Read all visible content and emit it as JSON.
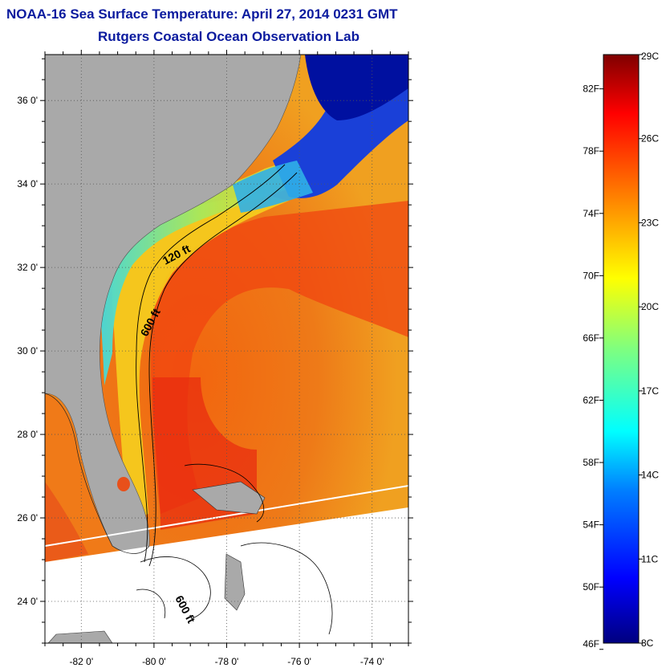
{
  "title": "NOAA-16 Sea Surface Temperature:  April 27, 2014 0231 GMT",
  "subtitle": "Rutgers Coastal Ocean Observation Lab",
  "map": {
    "lat_ticks": [
      "24 0'",
      "26 0'",
      "28 0'",
      "30 0'",
      "32 0'",
      "34 0'",
      "36 0'"
    ],
    "lat_values": [
      24,
      26,
      28,
      30,
      32,
      34,
      36
    ],
    "lon_ticks": [
      "-82 0'",
      "-80 0'",
      "-78 0'",
      "-76 0'",
      "-74 0'"
    ],
    "lon_values": [
      -82,
      -80,
      -78,
      -76,
      -74
    ],
    "lat_range": [
      23,
      37.1
    ],
    "lon_range": [
      -83,
      -73
    ],
    "contour_labels": [
      "120 ft",
      "600 ft",
      "600 ft"
    ],
    "colors": {
      "land": "#a9a9a9",
      "frame": "#000000"
    }
  },
  "colorbar": {
    "fahrenheit_labels": [
      "82F",
      "78F",
      "74F",
      "70F",
      "66F",
      "62F",
      "58F",
      "54F",
      "50F",
      "46F"
    ],
    "fahrenheit_values": [
      82,
      78,
      74,
      70,
      66,
      62,
      58,
      54,
      50,
      46
    ],
    "celsius_labels": [
      "29C",
      "26C",
      "23C",
      "20C",
      "17C",
      "14C",
      "11C",
      "8C"
    ],
    "celsius_values": [
      29,
      26,
      23,
      20,
      17,
      14,
      11,
      8
    ],
    "range_c": [
      8,
      29
    ],
    "stops": [
      "#00007f",
      "#0000ff",
      "#007fff",
      "#00ffff",
      "#7fff7f",
      "#ffff00",
      "#ff7f00",
      "#ff0000",
      "#7f0000"
    ]
  }
}
